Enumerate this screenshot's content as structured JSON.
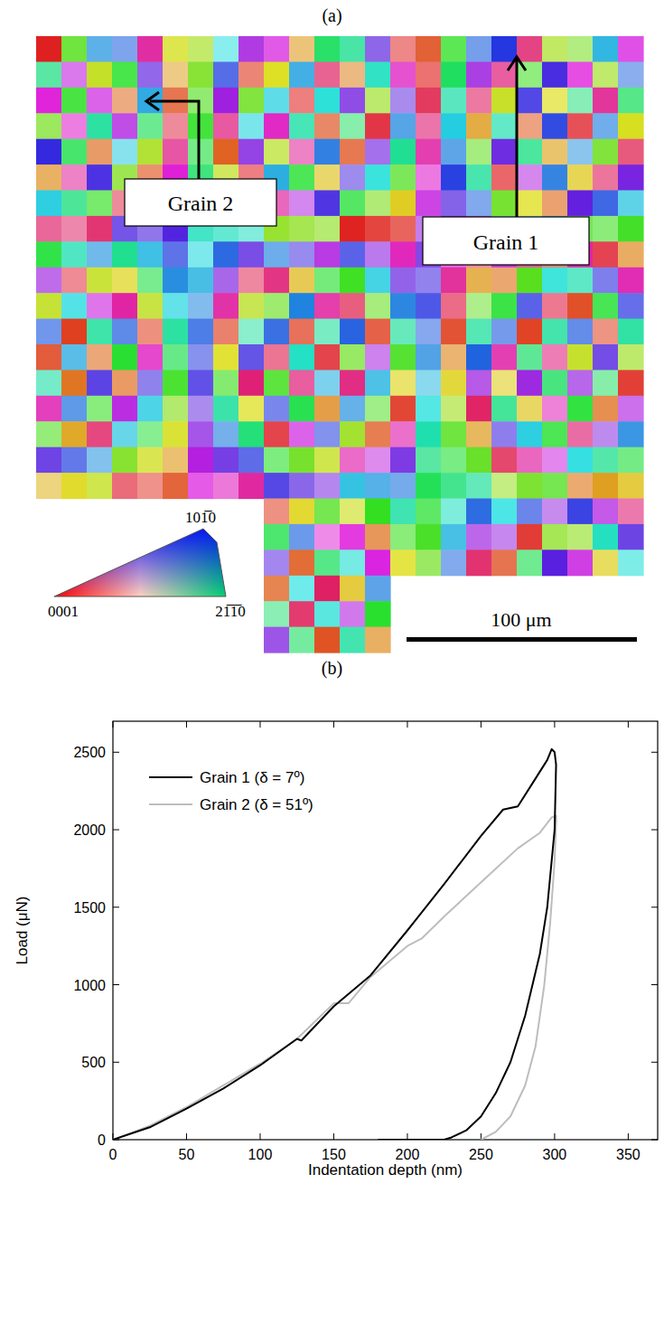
{
  "panel_a": {
    "label": "(a)",
    "annotations": [
      "Grain 2",
      "Grain 1"
    ],
    "scale_bar": "100 μm",
    "ipf_labels": [
      "101̅0",
      "0001",
      "21̅1̅0"
    ]
  },
  "chart_data": {
    "type": "line",
    "label": "(b)",
    "x_label": "Indentation depth (nm)",
    "y_label": "Load (μN)",
    "xlim": [
      0,
      370
    ],
    "xticks": [
      0,
      50,
      100,
      150,
      200,
      250,
      300,
      350
    ],
    "ylim": [
      0,
      2700
    ],
    "yticks": [
      0,
      500,
      1000,
      1500,
      2000,
      2500
    ],
    "legend": "upper left",
    "grid": false,
    "series": [
      {
        "name": "Grain 1 (δ = 7º)",
        "color": "#000000",
        "x": [
          0,
          25,
          50,
          75,
          100,
          125,
          128,
          150,
          175,
          200,
          225,
          250,
          265,
          275,
          285,
          295,
          298,
          300,
          301,
          300,
          295,
          290,
          280,
          270,
          260,
          250,
          240,
          230,
          225,
          200,
          180
        ],
        "values": [
          0,
          80,
          200,
          330,
          480,
          650,
          640,
          860,
          1060,
          1350,
          1650,
          1960,
          2130,
          2150,
          2300,
          2450,
          2520,
          2500,
          2420,
          2000,
          1500,
          1200,
          800,
          500,
          300,
          150,
          60,
          15,
          0,
          0,
          0
        ]
      },
      {
        "name": "Grain 2 (δ = 51º)",
        "color": "#bdbdbd",
        "x": [
          0,
          25,
          50,
          75,
          100,
          125,
          150,
          160,
          175,
          200,
          210,
          225,
          250,
          275,
          290,
          298,
          301,
          301,
          300,
          297,
          293,
          287,
          280,
          270,
          260,
          250
        ],
        "values": [
          0,
          90,
          210,
          350,
          490,
          650,
          880,
          880,
          1050,
          1250,
          1300,
          1440,
          1660,
          1880,
          1980,
          2080,
          2090,
          2050,
          1800,
          1400,
          1000,
          600,
          350,
          150,
          50,
          0
        ]
      }
    ]
  }
}
